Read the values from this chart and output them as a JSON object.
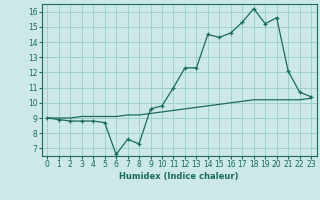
{
  "title": "",
  "xlabel": "Humidex (Indice chaleur)",
  "ylabel": "",
  "bg_color": "#cce8e8",
  "line_color": "#1a6b5a",
  "grid_color": "#99cccc",
  "xlim": [
    -0.5,
    23.5
  ],
  "ylim": [
    6.5,
    16.5
  ],
  "xticks": [
    0,
    1,
    2,
    3,
    4,
    5,
    6,
    7,
    8,
    9,
    10,
    11,
    12,
    13,
    14,
    15,
    16,
    17,
    18,
    19,
    20,
    21,
    22,
    23
  ],
  "yticks": [
    7,
    8,
    9,
    10,
    11,
    12,
    13,
    14,
    15,
    16
  ],
  "series1_x": [
    0,
    1,
    2,
    3,
    4,
    5,
    6,
    7,
    8,
    9,
    10,
    11,
    12,
    13,
    14,
    15,
    16,
    17,
    18,
    19,
    20,
    21,
    22,
    23
  ],
  "series1_y": [
    9.0,
    8.9,
    8.8,
    8.8,
    8.8,
    8.7,
    6.6,
    7.6,
    7.3,
    9.6,
    9.8,
    11.0,
    12.3,
    12.3,
    14.5,
    14.3,
    14.6,
    15.3,
    16.2,
    15.2,
    15.6,
    12.1,
    10.7,
    10.4
  ],
  "series2_x": [
    0,
    1,
    2,
    3,
    4,
    5,
    6,
    7,
    8,
    9,
    10,
    11,
    12,
    13,
    14,
    15,
    16,
    17,
    18,
    19,
    20,
    21,
    22,
    23
  ],
  "series2_y": [
    9.0,
    9.0,
    9.0,
    9.1,
    9.1,
    9.1,
    9.1,
    9.2,
    9.2,
    9.3,
    9.4,
    9.5,
    9.6,
    9.7,
    9.8,
    9.9,
    10.0,
    10.1,
    10.2,
    10.2,
    10.2,
    10.2,
    10.2,
    10.3
  ]
}
